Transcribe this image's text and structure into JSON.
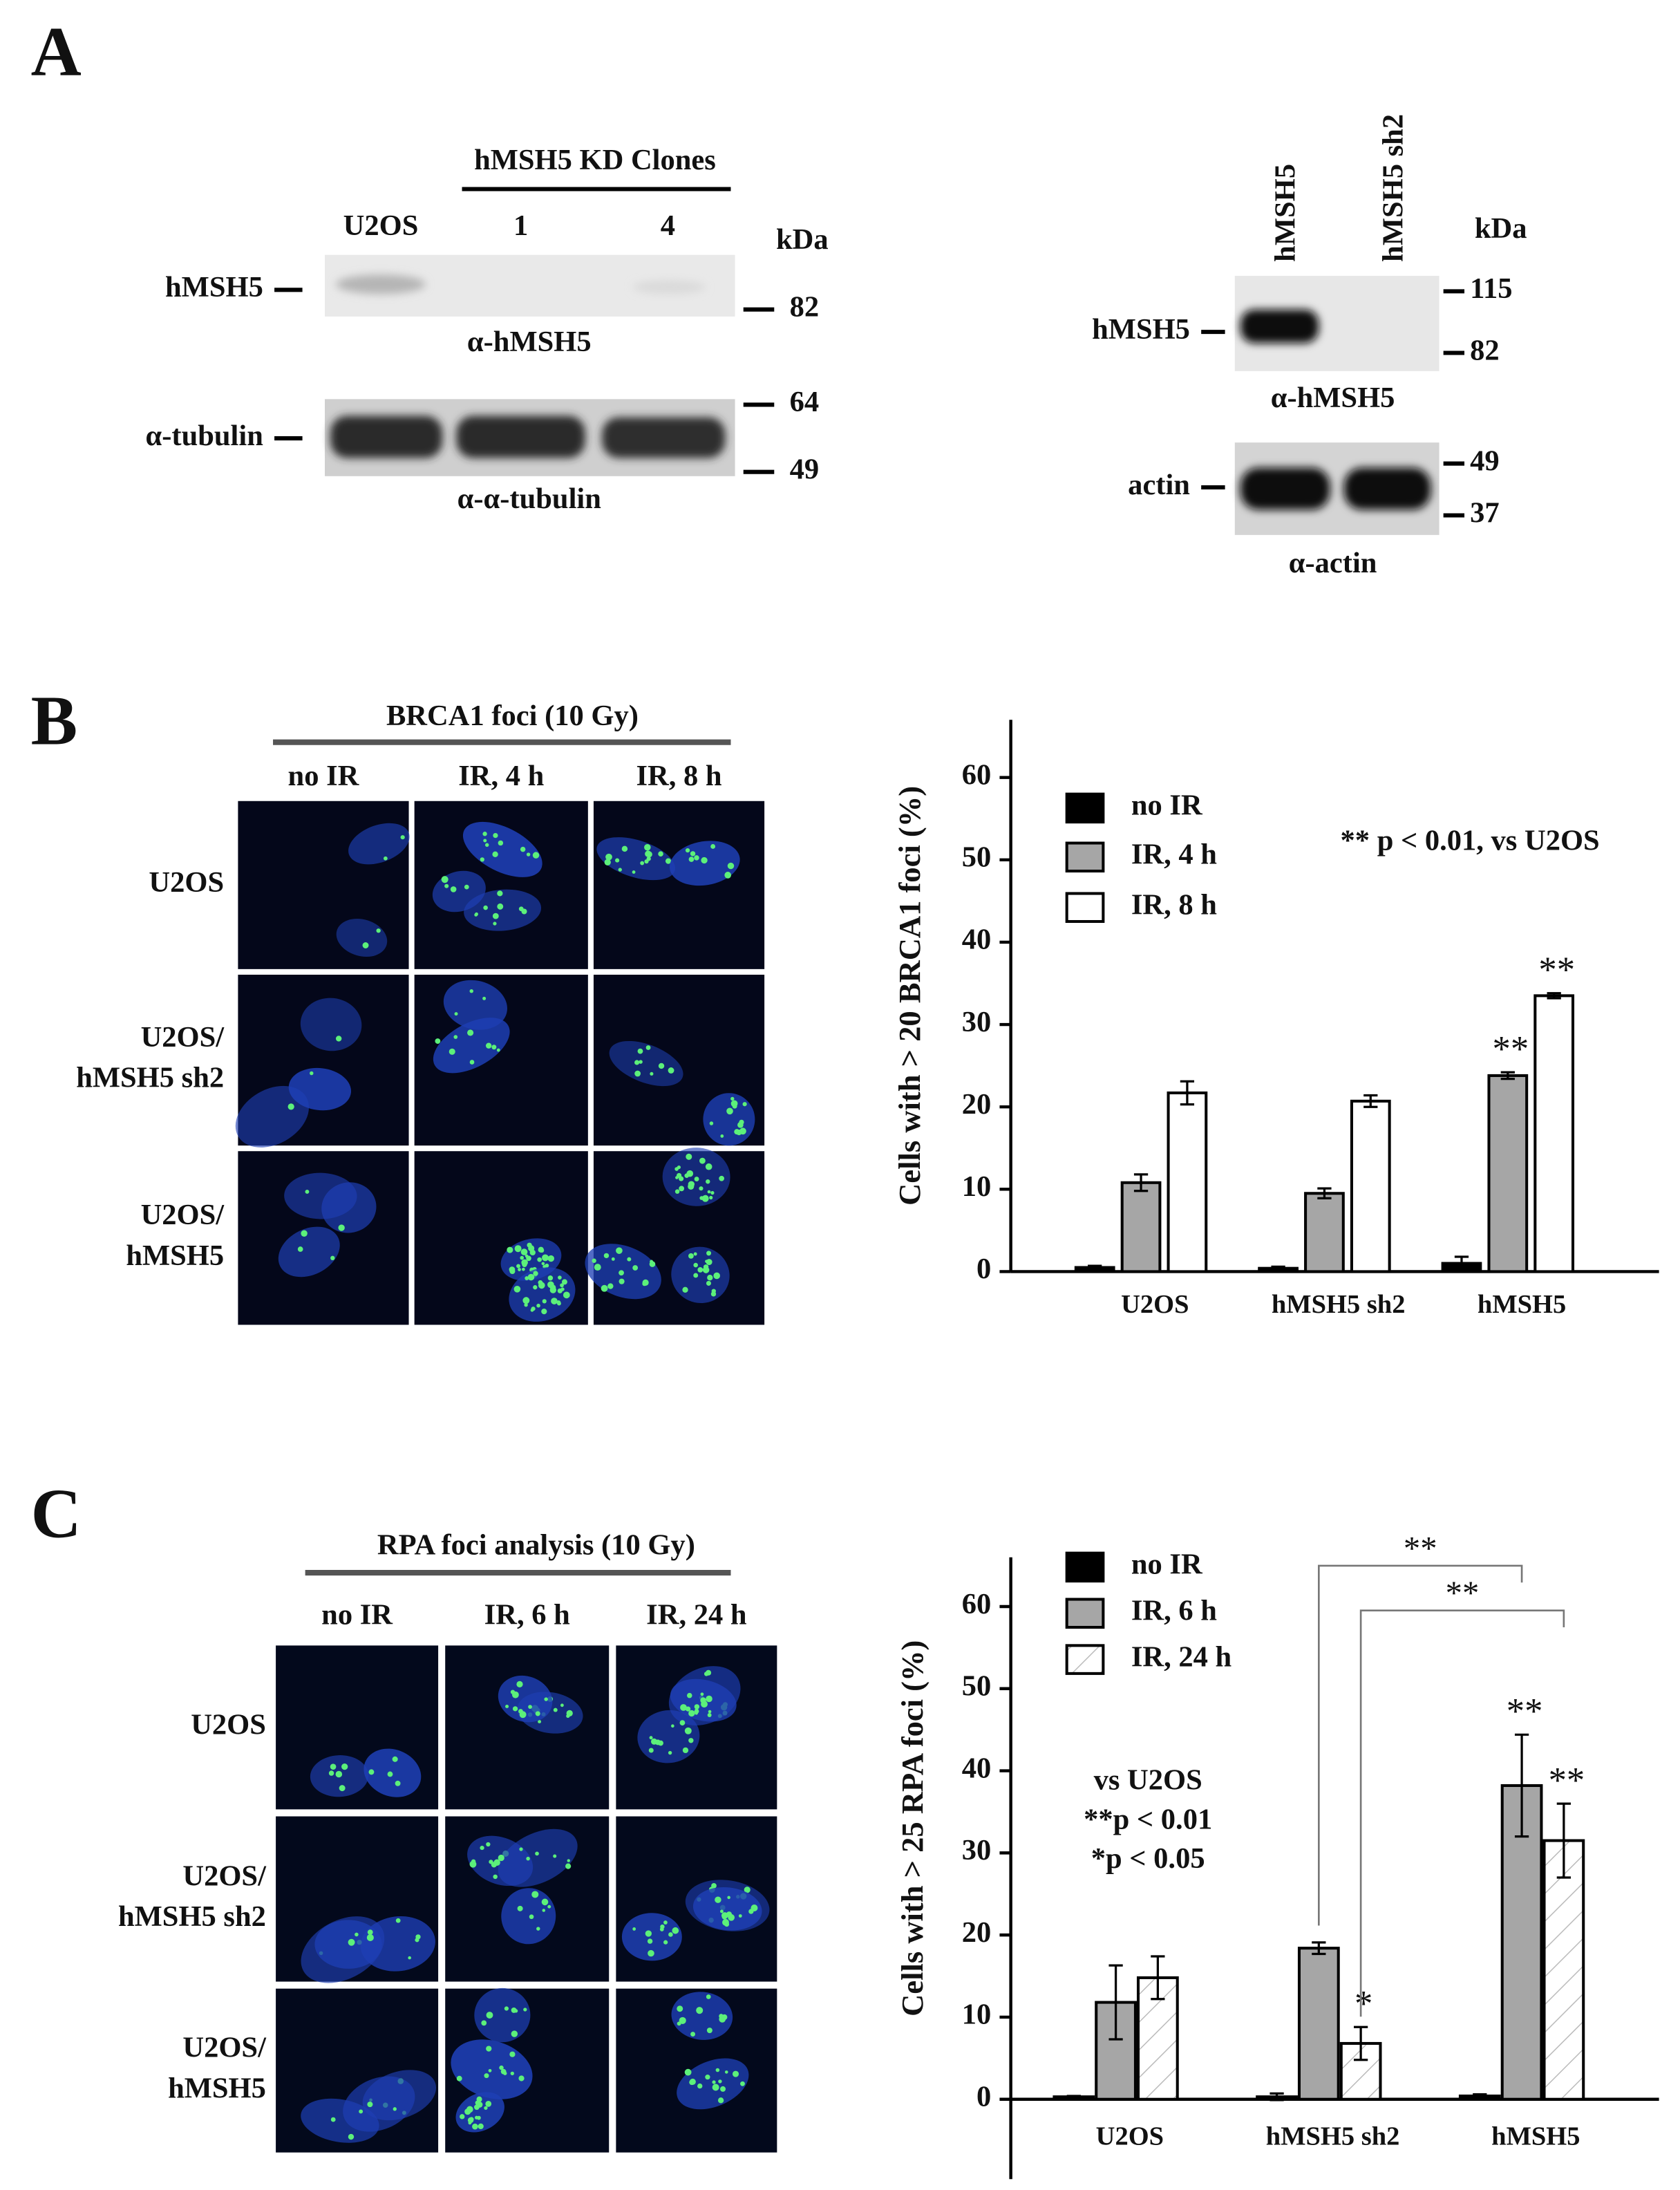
{
  "panel_a": {
    "label": "A",
    "left": {
      "group_label": "hMSH5 KD Clones",
      "lanes": [
        "U2OS",
        "1",
        "4"
      ],
      "unit": "kDa",
      "blots": [
        {
          "protein": "hMSH5",
          "antibody": "α-hMSH5",
          "markers": [
            "82"
          ]
        },
        {
          "protein": "α-tubulin",
          "antibody": "α-α-tubulin",
          "markers": [
            "64",
            "49"
          ]
        }
      ]
    },
    "right": {
      "lanes": [
        "hMSH5",
        "hMSH5 sh2"
      ],
      "unit": "kDa",
      "blots": [
        {
          "protein": "hMSH5",
          "antibody": "α-hMSH5",
          "markers": [
            "115",
            "82"
          ]
        },
        {
          "protein": "actin",
          "antibody": "α-actin",
          "markers": [
            "49",
            "37"
          ]
        }
      ]
    }
  },
  "panel_b": {
    "label": "B",
    "title": "BRCA1 foci (10 Gy)",
    "columns": [
      "no IR",
      "IR, 4 h",
      "IR, 8 h"
    ],
    "rows": [
      [
        "U2OS"
      ],
      [
        "U2OS/",
        "hMSH5 sh2"
      ],
      [
        "U2OS/",
        "hMSH5"
      ]
    ]
  },
  "panel_c": {
    "label": "C",
    "title": "RPA foci analysis (10 Gy)",
    "columns": [
      "no IR",
      "IR, 6 h",
      "IR, 24 h"
    ],
    "rows": [
      [
        "U2OS"
      ],
      [
        "U2OS/",
        "hMSH5 sh2"
      ],
      [
        "U2OS/",
        "hMSH5"
      ]
    ]
  },
  "chart_data": [
    {
      "type": "bar",
      "ylabel": "Cells with > 20 BRCA1 foci (%)",
      "categories": [
        "U2OS",
        "hMSH5 sh2",
        "hMSH5"
      ],
      "series": [
        {
          "name": "no IR",
          "color": "#000000",
          "values": [
            0.5,
            0.4,
            1.0
          ],
          "errors": [
            0.2,
            0.2,
            0.8
          ]
        },
        {
          "name": "IR, 4 h",
          "color": "#a6a6a6",
          "values": [
            10.8,
            9.5,
            23.8
          ],
          "errors": [
            1.0,
            0.6,
            0.4
          ],
          "significance": [
            null,
            null,
            "**"
          ]
        },
        {
          "name": "IR, 8 h",
          "color": "#ffffff",
          "values": [
            21.7,
            20.7,
            33.5
          ],
          "errors": [
            1.4,
            0.7,
            0.3
          ],
          "significance": [
            null,
            null,
            "**"
          ]
        }
      ],
      "ylim": [
        0,
        67
      ],
      "yticks": [
        0,
        10,
        20,
        30,
        40,
        50,
        60
      ],
      "note": [
        "** p < 0.01, vs U2OS"
      ]
    },
    {
      "type": "bar",
      "ylabel": "Cells with > 25 RPA foci (%)",
      "categories": [
        "U2OS",
        "hMSH5 sh2",
        "hMSH5"
      ],
      "series": [
        {
          "name": "no IR",
          "color": "#000000",
          "values": [
            0.3,
            0.3,
            0.4
          ],
          "errors": [
            0.1,
            0.4,
            0.2
          ]
        },
        {
          "name": "IR, 6 h",
          "color": "#a6a6a6",
          "values": [
            11.8,
            18.4,
            38.2
          ],
          "errors": [
            4.5,
            0.7,
            6.2
          ],
          "significance": [
            null,
            null,
            "**"
          ]
        },
        {
          "name": "IR, 24 h",
          "color": "#ffffff",
          "hatch": true,
          "values": [
            14.8,
            6.8,
            31.5
          ],
          "errors": [
            2.6,
            2.0,
            4.5
          ],
          "significance": [
            null,
            "*",
            "**"
          ]
        }
      ],
      "ylim": [
        0,
        66
      ],
      "yticks": [
        0,
        10,
        20,
        30,
        40,
        50,
        60
      ],
      "note": [
        "vs U2OS",
        "**p < 0.01",
        "*p < 0.05"
      ],
      "brackets": [
        "**",
        "**"
      ]
    }
  ]
}
